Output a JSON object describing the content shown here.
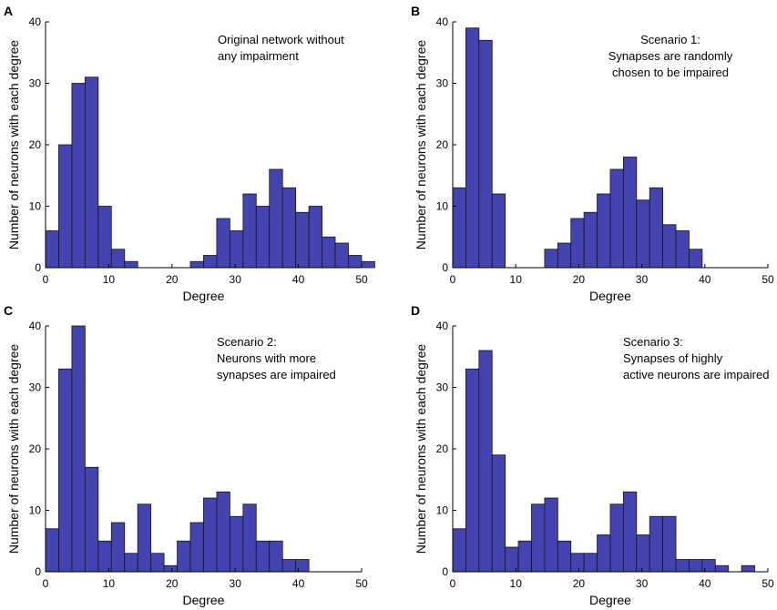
{
  "figure": {
    "bar_color": "#4444b0",
    "bar_edge_color": "#141414",
    "axis_color": "#000000"
  },
  "chart_data": [
    {
      "panel": "A",
      "type": "bar",
      "annotation": [
        "Original network without",
        "any impairment"
      ],
      "xlabel": "Degree",
      "ylabel": "Number of neurons with each degree",
      "xlim": [
        0,
        50
      ],
      "ylim": [
        0,
        40
      ],
      "xticks": [
        0,
        10,
        20,
        30,
        40,
        50
      ],
      "yticks": [
        0,
        10,
        20,
        30,
        40
      ],
      "bin_width": 2.083,
      "bin_start": 0,
      "values": [
        6,
        20,
        30,
        31,
        10,
        3,
        1,
        0,
        0,
        0,
        0,
        1,
        2,
        8,
        6,
        12,
        10,
        16,
        13,
        9,
        10,
        5,
        4,
        2,
        1
      ]
    },
    {
      "panel": "B",
      "type": "bar",
      "annotation": [
        "Scenario 1:",
        "Synapses are randomly",
        "chosen to be impaired"
      ],
      "xlabel": "Degree",
      "ylabel": "Number of neurons with each degree",
      "xlim": [
        0,
        50
      ],
      "ylim": [
        0,
        40
      ],
      "xticks": [
        0,
        10,
        20,
        30,
        40,
        50
      ],
      "yticks": [
        0,
        10,
        20,
        30,
        40
      ],
      "bin_width": 2.083,
      "bin_start": 0,
      "values": [
        13,
        39,
        37,
        12,
        0,
        0,
        0,
        3,
        4,
        8,
        9,
        12,
        16,
        18,
        11,
        13,
        7,
        6,
        3
      ]
    },
    {
      "panel": "C",
      "type": "bar",
      "annotation": [
        "Scenario 2:",
        "Neurons with more",
        "synapses are impaired"
      ],
      "xlabel": "Degree",
      "ylabel": "Number of neurons with each degree",
      "xlim": [
        0,
        50
      ],
      "ylim": [
        0,
        40
      ],
      "xticks": [
        0,
        10,
        20,
        30,
        40,
        50
      ],
      "yticks": [
        0,
        10,
        20,
        30,
        40
      ],
      "bin_width": 2.083,
      "bin_start": 0,
      "values": [
        7,
        33,
        40,
        17,
        5,
        8,
        3,
        11,
        3,
        1,
        5,
        8,
        12,
        13,
        9,
        11,
        5,
        5,
        2,
        2
      ]
    },
    {
      "panel": "D",
      "type": "bar",
      "annotation": [
        "Scenario 3:",
        "Synapses of highly",
        "active neurons are impaired"
      ],
      "xlabel": "Degree",
      "ylabel": "Number of neurons with each degree",
      "xlim": [
        0,
        50
      ],
      "ylim": [
        0,
        40
      ],
      "xticks": [
        0,
        10,
        20,
        30,
        40,
        50
      ],
      "yticks": [
        0,
        10,
        20,
        30,
        40
      ],
      "bin_width": 2.083,
      "bin_start": 0,
      "values": [
        7,
        33,
        36,
        19,
        4,
        5,
        11,
        12,
        5,
        3,
        3,
        6,
        11,
        13,
        6,
        9,
        9,
        2,
        2,
        2,
        1,
        0,
        1
      ]
    }
  ]
}
